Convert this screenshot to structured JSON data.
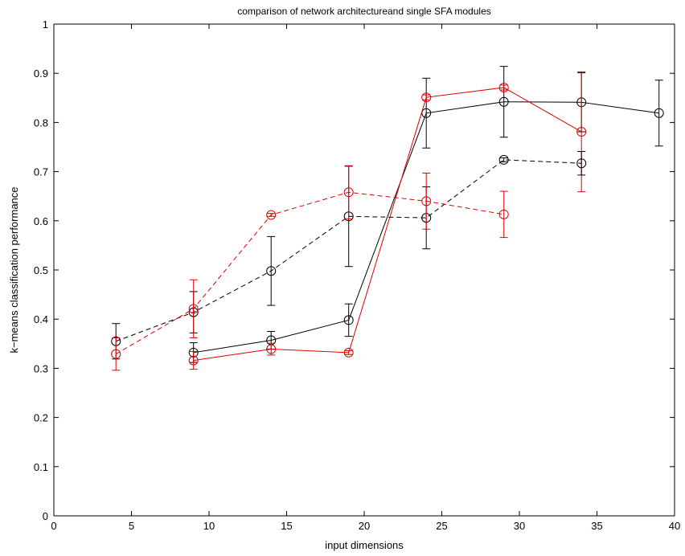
{
  "chart_data": {
    "type": "line",
    "title": "comparison of network architectureand single SFA modules",
    "xlabel": "input dimensions",
    "ylabel": "k−means classification performance",
    "xlim": [
      0,
      40
    ],
    "ylim": [
      0,
      1
    ],
    "xticks": [
      0,
      5,
      10,
      15,
      20,
      25,
      30,
      35,
      40
    ],
    "yticks": [
      0,
      0.1,
      0.2,
      0.3,
      0.4,
      0.5,
      0.6,
      0.7,
      0.8,
      0.9,
      1
    ],
    "xtick_labels": [
      "0",
      "5",
      "10",
      "15",
      "20",
      "25",
      "30",
      "35",
      "40"
    ],
    "ytick_labels": [
      "0",
      "0.1",
      "0.2",
      "0.3",
      "0.4",
      "0.5",
      "0.6",
      "0.7",
      "0.8",
      "0.9",
      "1"
    ],
    "grid": false,
    "series": [
      {
        "color": "#000000",
        "style": "solid",
        "marker": "circle",
        "x": [
          9,
          14,
          19,
          24,
          29,
          34,
          39
        ],
        "y": [
          0.332,
          0.357,
          0.398,
          0.819,
          0.842,
          0.841,
          0.819
        ],
        "err": [
          0.02,
          0.018,
          0.033,
          0.071,
          0.072,
          0.06,
          0.067
        ]
      },
      {
        "color": "#e00000",
        "style": "solid",
        "marker": "circle",
        "x": [
          9,
          14,
          19,
          24,
          29,
          34
        ],
        "y": [
          0.316,
          0.339,
          0.332,
          0.851,
          0.871,
          0.781
        ],
        "err": [
          0.018,
          0.012,
          0.004,
          0.005,
          0.005,
          0.122
        ]
      },
      {
        "color": "#000000",
        "style": "dashed",
        "marker": "circle",
        "x": [
          4,
          9,
          14,
          19,
          24,
          29,
          34
        ],
        "y": [
          0.355,
          0.414,
          0.498,
          0.609,
          0.606,
          0.724,
          0.717
        ],
        "err": [
          0.036,
          0.042,
          0.07,
          0.102,
          0.063,
          0.004,
          0.024
        ]
      },
      {
        "color": "#e00000",
        "style": "dashed",
        "marker": "circle",
        "x": [
          4,
          9,
          14,
          19,
          24,
          29
        ],
        "y": [
          0.329,
          0.421,
          0.612,
          0.658,
          0.64,
          0.613
        ],
        "err": [
          0.033,
          0.059,
          0.003,
          0.054,
          0.057,
          0.047
        ]
      }
    ]
  }
}
